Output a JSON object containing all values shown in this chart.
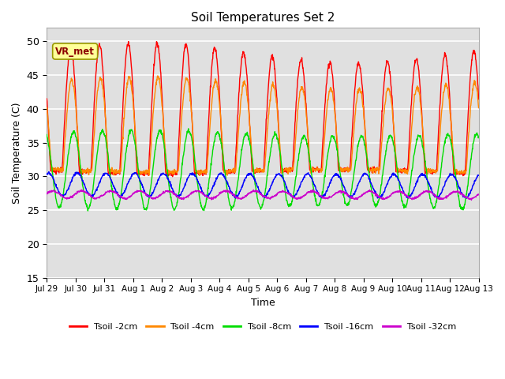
{
  "title": "Soil Temperatures Set 2",
  "xlabel": "Time",
  "ylabel": "Soil Temperature (C)",
  "ylim": [
    15,
    52
  ],
  "yticks": [
    15,
    20,
    25,
    30,
    35,
    40,
    45,
    50
  ],
  "fig_bg_color": "#ffffff",
  "plot_bg_color": "#e0e0e0",
  "grid_color": "#c8c8c8",
  "series_colors": [
    "#ff0000",
    "#ff8800",
    "#00dd00",
    "#0000ff",
    "#cc00cc"
  ],
  "series_labels": [
    "Tsoil -2cm",
    "Tsoil -4cm",
    "Tsoil -8cm",
    "Tsoil -16cm",
    "Tsoil -32cm"
  ],
  "annotation_text": "VR_met",
  "x_tick_labels": [
    "Jul 29",
    "Jul 30",
    "Jul 31",
    "Aug 1",
    "Aug 2",
    "Aug 3",
    "Aug 4",
    "Aug 5",
    "Aug 6",
    "Aug 7",
    "Aug 8",
    "Aug 9",
    "Aug 10",
    "Aug 11",
    "Aug 12",
    "Aug 13"
  ],
  "n_days": 15,
  "points_per_day": 96
}
